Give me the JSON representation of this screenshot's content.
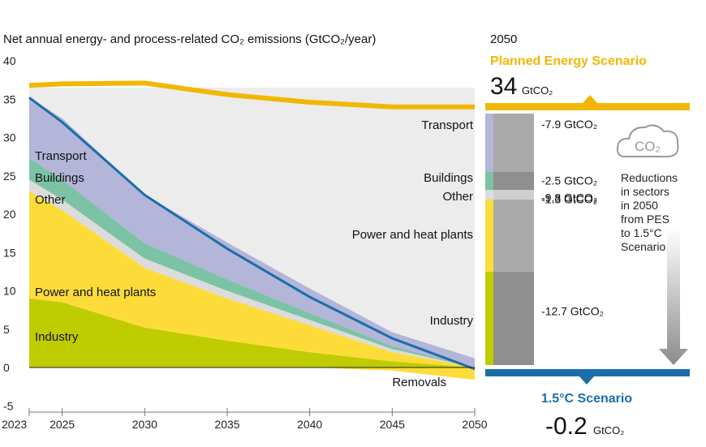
{
  "chart_data": {
    "type": "area",
    "title": "Net annual energy- and process-related CO₂ emissions (GtCO₂/year)",
    "x": [
      2023,
      2025,
      2030,
      2035,
      2040,
      2045,
      2050
    ],
    "x_ticks": [
      "2023",
      "2025",
      "2030",
      "2035",
      "2040",
      "2045",
      "2050"
    ],
    "y_ticks": [
      "-5",
      "0",
      "5",
      "10",
      "15",
      "20",
      "25",
      "30",
      "35",
      "40"
    ],
    "ylim": [
      -5,
      40
    ],
    "xlim": [
      2023,
      2050
    ],
    "grid": false,
    "series": [
      {
        "name": "Industry",
        "color": "#bfcc00",
        "values": [
          9.0,
          8.5,
          5.2,
          3.5,
          2.0,
          0.8,
          0.0
        ]
      },
      {
        "name": "Power and heat plants",
        "color": "#fddc3a",
        "values": [
          14.0,
          12.0,
          7.8,
          5.5,
          3.5,
          1.2,
          0.0
        ]
      },
      {
        "name": "Other",
        "color": "#dcdcdc",
        "values": [
          1.5,
          1.4,
          1.2,
          1.0,
          0.7,
          0.4,
          0.0
        ]
      },
      {
        "name": "Buildings",
        "color": "#7cc3a6",
        "values": [
          2.8,
          2.6,
          2.0,
          1.5,
          0.9,
          0.4,
          0.0
        ]
      },
      {
        "name": "Transport",
        "color": "#b3b5d9",
        "values": [
          7.9,
          8.0,
          6.3,
          4.8,
          3.2,
          1.8,
          1.2
        ]
      },
      {
        "name": "Removals",
        "color": "#fddc3a",
        "values": [
          0.0,
          0.0,
          0.0,
          0.0,
          0.0,
          -0.4,
          -1.6
        ]
      }
    ],
    "lines": [
      {
        "name": "Planned Energy Scenario",
        "color": "#f2b705",
        "values": [
          36.8,
          37.0,
          37.1,
          35.6,
          34.6,
          34.0,
          34.0
        ]
      },
      {
        "name": "1.5°C Scenario",
        "color": "#1b6ea8",
        "values": [
          35.2,
          32.0,
          22.5,
          15.5,
          9.2,
          3.8,
          -0.2
        ]
      }
    ]
  },
  "labels": {
    "left_transport": "Transport",
    "left_buildings": "Buildings",
    "left_other": "Other",
    "left_power": "Power and heat plants",
    "left_industry": "Industry",
    "right_transport": "Transport",
    "right_buildings": "Buildings",
    "right_other": "Other",
    "right_power": "Power and heat plants",
    "right_industry": "Industry",
    "removals": "Removals"
  },
  "panel": {
    "year": "2050",
    "pes_title": "Planned Energy Scenario",
    "pes_value": "34",
    "pes_unit": "GtCO₂",
    "scenario_title": "1.5°C Scenario",
    "scenario_value": "-0.2",
    "scenario_unit": "GtCO₂",
    "co2_icon_text": "CO₂",
    "note": [
      "Reductions",
      "in sectors",
      "in 2050",
      "from PES",
      "to 1.5°C",
      "Scenario"
    ],
    "reductions": [
      {
        "sector": "Transport",
        "value": "-7.9 GtCO₂",
        "color": "#b3b5d9"
      },
      {
        "sector": "Buildings",
        "value": "-2.5 GtCO₂",
        "color": "#7cc3a6"
      },
      {
        "sector": "Other",
        "value": "-1.3 GtCO₂",
        "color": "#dcdcdc"
      },
      {
        "sector": "Power and heat plants",
        "value": "-9.8 GtCO₂",
        "color": "#fddc3a"
      },
      {
        "sector": "Industry",
        "value": "-12.7 GtCO₂",
        "color": "#bfcc00"
      }
    ],
    "pes_color": "#f2b705",
    "scenario_color": "#1b6ea8"
  }
}
